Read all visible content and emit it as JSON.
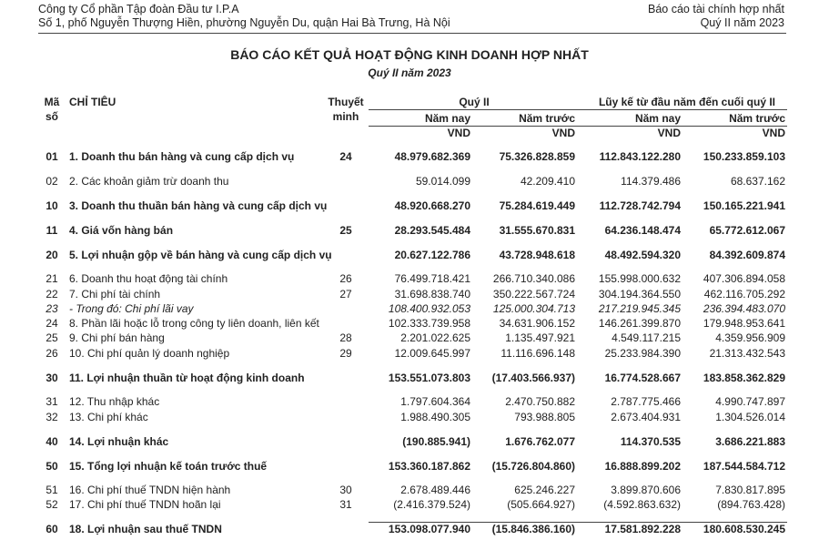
{
  "header": {
    "company": "Công ty Cổ phần Tập đoàn Đầu tư I.P.A",
    "address": "Số 1, phố Nguyễn Thượng Hiền, phường Nguyễn Du, quận Hai Bà Trưng, Hà Nội",
    "report_type": "Báo cáo tài chính hợp nhất",
    "period": "Quý II năm 2023"
  },
  "title": "BÁO CÁO KẾT QUẢ HOẠT ĐỘNG KINH DOANH HỢP NHẤT",
  "subtitle": "Quý II năm 2023",
  "table": {
    "columns": {
      "code": [
        "Mã",
        "số"
      ],
      "item": "CHỈ TIÊU",
      "note": [
        "Thuyết",
        "minh"
      ],
      "groups": [
        "Quý II",
        "Lũy kế từ đầu năm đến cuối quý II"
      ],
      "sub": [
        "Năm nay",
        "Năm trước",
        "Năm nay",
        "Năm trước"
      ],
      "unit": [
        "VND",
        "VND",
        "VND",
        "VND"
      ]
    },
    "rows": [
      {
        "code": "01",
        "label": "1. Doanh thu bán hàng và cung cấp dịch vụ",
        "note": "24",
        "values": [
          "48.979.682.369",
          "75.326.828.859",
          "112.843.122.280",
          "150.233.859.103"
        ],
        "style": "bold"
      },
      {
        "code": "02",
        "label": "2. Các khoản giảm trừ doanh thu",
        "values": [
          "59.014.099",
          "42.209.410",
          "114.379.486",
          "68.637.162"
        ],
        "style": "normal"
      },
      {
        "code": "10",
        "label": "3. Doanh thu thuần bán hàng và cung cấp dịch vụ",
        "values": [
          "48.920.668.270",
          "75.284.619.449",
          "112.728.742.794",
          "150.165.221.941"
        ],
        "style": "bold"
      },
      {
        "code": "11",
        "label": "4. Giá vốn hàng bán",
        "note": "25",
        "values": [
          "28.293.545.484",
          "31.555.670.831",
          "64.236.148.474",
          "65.772.612.067"
        ],
        "style": "bold"
      },
      {
        "code": "20",
        "label": "5. Lợi nhuận gộp về bán hàng và cung cấp dịch vụ",
        "values": [
          "20.627.122.786",
          "43.728.948.618",
          "48.492.594.320",
          "84.392.609.874"
        ],
        "style": "bold"
      },
      {
        "code": "21",
        "label": "6. Doanh thu hoạt động tài chính",
        "note": "26",
        "values": [
          "76.499.718.421",
          "266.710.340.086",
          "155.998.000.632",
          "407.306.894.058"
        ],
        "style": "normal"
      },
      {
        "code": "22",
        "label": "7. Chi phí tài chính",
        "note": "27",
        "values": [
          "31.698.838.740",
          "350.222.567.724",
          "304.194.364.550",
          "462.116.705.292"
        ],
        "style": "normal"
      },
      {
        "code": "23",
        "label": "- Trong đó: Chi phí lãi vay",
        "values": [
          "108.400.932.053",
          "125.000.304.713",
          "217.219.945.345",
          "236.394.483.070"
        ],
        "style": "italic"
      },
      {
        "code": "24",
        "label": "8. Phần lãi hoặc lỗ trong công ty liên doanh, liên kết",
        "values": [
          "102.333.739.958",
          "34.631.906.152",
          "146.261.399.870",
          "179.948.953.641"
        ],
        "style": "normal"
      },
      {
        "code": "25",
        "label": "9. Chi phí bán hàng",
        "note": "28",
        "values": [
          "2.201.022.625",
          "1.135.497.921",
          "4.549.117.215",
          "4.359.956.909"
        ],
        "style": "normal"
      },
      {
        "code": "26",
        "label": "10. Chi phí quản lý doanh nghiệp",
        "note": "29",
        "values": [
          "12.009.645.997",
          "11.116.696.148",
          "25.233.984.390",
          "21.313.432.543"
        ],
        "style": "normal"
      },
      {
        "code": "30",
        "label": "11. Lợi nhuận thuần từ hoạt động kinh doanh",
        "values": [
          "153.551.073.803",
          "(17.403.566.937)",
          "16.774.528.667",
          "183.858.362.829"
        ],
        "style": "bold"
      },
      {
        "code": "31",
        "label": "12. Thu nhập khác",
        "values": [
          "1.797.604.364",
          "2.470.750.882",
          "2.787.775.466",
          "4.990.747.897"
        ],
        "style": "normal"
      },
      {
        "code": "32",
        "label": "13. Chi phí khác",
        "values": [
          "1.988.490.305",
          "793.988.805",
          "2.673.404.931",
          "1.304.526.014"
        ],
        "style": "normal"
      },
      {
        "code": "40",
        "label": "14. Lợi nhuận khác",
        "values": [
          "(190.885.941)",
          "1.676.762.077",
          "114.370.535",
          "3.686.221.883"
        ],
        "style": "bold"
      },
      {
        "code": "50",
        "label": "15. Tổng lợi nhuận kế toán trước thuế",
        "values": [
          "153.360.187.862",
          "(15.726.804.860)",
          "16.888.899.202",
          "187.544.584.712"
        ],
        "style": "bold"
      },
      {
        "code": "51",
        "label": "16. Chi phí thuế TNDN hiện hành",
        "note": "30",
        "values": [
          "2.678.489.446",
          "625.246.227",
          "3.899.870.606",
          "7.830.817.895"
        ],
        "style": "normal"
      },
      {
        "code": "52",
        "label": "17. Chi phí thuế TNDN hoãn lại",
        "note": "31",
        "values": [
          "(2.416.379.524)",
          "(505.664.927)",
          "(4.592.863.632)",
          "(894.763.428)"
        ],
        "style": "normal"
      },
      {
        "code": "60",
        "label": "18. Lợi nhuận sau thuế TNDN",
        "values": [
          "153.098.077.940",
          "(15.846.386.160)",
          "17.581.892.228",
          "180.608.530.245"
        ],
        "style": "bold"
      }
    ]
  }
}
